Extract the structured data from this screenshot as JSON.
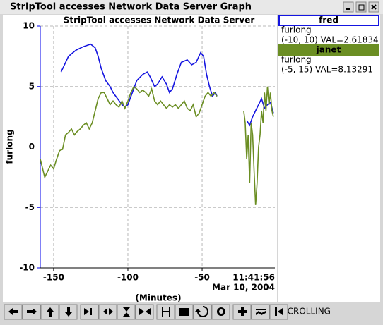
{
  "window": {
    "title": "StripTool accesses Network Data Server Graph"
  },
  "chart_data": {
    "type": "line",
    "title": "StripTool accesses Network Data Server",
    "ylabel": "furlong",
    "xlabel": "(Minutes)",
    "xlim": [
      -159,
      -1
    ],
    "xticks": [
      -150,
      -100,
      -50
    ],
    "ylim": [
      -10,
      10
    ],
    "yticks": [
      -10,
      -5,
      0,
      5,
      10
    ],
    "grid": true,
    "axis_color": "#0000ee",
    "end_label": {
      "time": "11:41:56",
      "date": "Mar 10, 2004"
    },
    "series": [
      {
        "name": "fred",
        "color": "#1515e0",
        "units": "furlong",
        "range_value": "(-10, 10) VAL=2.61834",
        "x": [
          -145,
          -140,
          -135,
          -130,
          -125,
          -122,
          -120,
          -118,
          -115,
          -112,
          -110,
          -107,
          -104,
          -102,
          -100,
          -97,
          -94,
          -90,
          -87,
          -85,
          -82,
          -80,
          -77,
          -74,
          -72,
          -70,
          -67,
          -64,
          -60,
          -57,
          -54,
          -51,
          -49,
          -47,
          -45,
          -43,
          -41,
          -40,
          -30,
          -20,
          -18,
          -16,
          -14,
          -12,
          -10,
          -8,
          -6,
          -4,
          -2
        ],
        "values": [
          6.2,
          7.5,
          8,
          8.3,
          8.5,
          8.2,
          7.5,
          6.5,
          5.5,
          5,
          4.5,
          4,
          3.5,
          3.3,
          3.5,
          4.5,
          5.5,
          6,
          6.2,
          5.8,
          5,
          5.2,
          5.8,
          5.2,
          4.5,
          4.8,
          6,
          7,
          7.2,
          6.8,
          7,
          7.8,
          7.5,
          6,
          5,
          4.2,
          4.5,
          4.2,
          null,
          2.2,
          1.8,
          2.5,
          3,
          3.5,
          4,
          3.2,
          3.5,
          3.7,
          2.8
        ]
      },
      {
        "name": "janet",
        "color": "#6b8e23",
        "units": "furlong",
        "range_value": "(-5, 15) VAL=8.13291",
        "x": [
          -159,
          -156,
          -154,
          -152,
          -150,
          -148,
          -146,
          -144,
          -142,
          -140,
          -138,
          -136,
          -134,
          -132,
          -130,
          -128,
          -126,
          -124,
          -122,
          -120,
          -118,
          -116,
          -114,
          -112,
          -110,
          -108,
          -106,
          -104,
          -102,
          -100,
          -98,
          -96,
          -94,
          -92,
          -90,
          -88,
          -86,
          -84,
          -82,
          -80,
          -78,
          -76,
          -74,
          -72,
          -70,
          -68,
          -66,
          -64,
          -62,
          -60,
          -58,
          -56,
          -54,
          -52,
          -50,
          -48,
          -46,
          -44,
          -42,
          -40,
          -30,
          -22,
          -21,
          -20,
          -19,
          -18,
          -17,
          -16,
          -15,
          -14,
          -13,
          -12,
          -11,
          -10,
          -9,
          -8,
          -7,
          -6,
          -5,
          -4,
          -3,
          -2
        ],
        "values": [
          -1,
          -2.5,
          -2,
          -1.5,
          -1.8,
          -1,
          -0.3,
          -0.2,
          1,
          1.2,
          1.5,
          1,
          1.3,
          1.5,
          1.8,
          2,
          1.5,
          2,
          3,
          4,
          4.5,
          4.5,
          4,
          3.5,
          3.8,
          3.5,
          3.3,
          3.8,
          3.2,
          3.8,
          4.5,
          5,
          4.8,
          4.5,
          4.7,
          4.5,
          4.2,
          4.8,
          3.8,
          3.5,
          3.8,
          3.5,
          3.2,
          3.5,
          3.3,
          3.5,
          3.2,
          3.5,
          3.8,
          3.2,
          3,
          3.5,
          2.5,
          2.8,
          3.5,
          4.2,
          4.5,
          4.2,
          4.5,
          4.2,
          null,
          3,
          2,
          -1,
          1,
          -3,
          2,
          1,
          -2,
          -4.8,
          -3,
          0,
          1,
          3,
          2,
          4.5,
          3,
          5,
          3.5,
          4.5,
          3,
          2.5
        ]
      }
    ]
  },
  "toolbar": {
    "status": "SCROLLING"
  }
}
